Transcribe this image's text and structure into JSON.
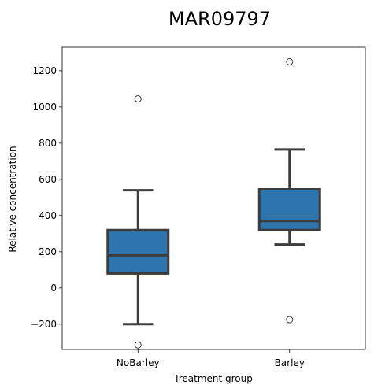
{
  "chart_data": {
    "type": "box",
    "title": "MAR09797",
    "xlabel": "Treatment group",
    "ylabel": "Relative concentration",
    "ylim": [
      -340,
      1330
    ],
    "yticks": [
      -200,
      0,
      200,
      400,
      600,
      800,
      1000,
      1200
    ],
    "ytick_labels": [
      "−200",
      "0",
      "200",
      "400",
      "600",
      "800",
      "1000",
      "1200"
    ],
    "categories": [
      "NoBarley",
      "Barley"
    ],
    "box_color": "#2f75ad",
    "line_color": "#3d3d3d",
    "series": [
      {
        "name": "NoBarley",
        "whisker_low": -200,
        "q1": 80,
        "median": 180,
        "q3": 320,
        "whisker_high": 540,
        "outliers": [
          1045,
          -315
        ]
      },
      {
        "name": "Barley",
        "whisker_low": 240,
        "q1": 320,
        "median": 370,
        "q3": 545,
        "whisker_high": 765,
        "outliers": [
          1250,
          -175
        ]
      }
    ]
  }
}
